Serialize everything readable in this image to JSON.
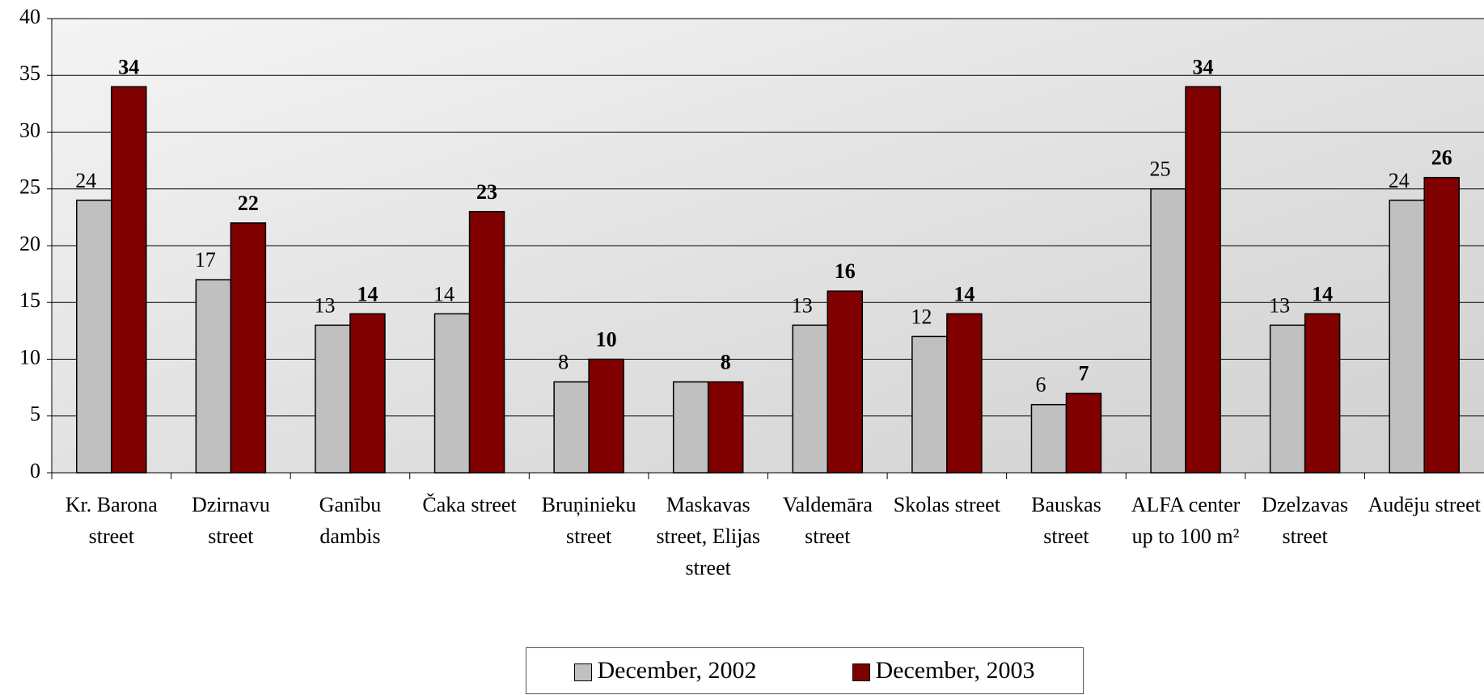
{
  "chart_data": {
    "type": "bar",
    "categories": [
      "Kr. Barona street",
      "Dzirnavu street",
      "Ganību dambis",
      "Čaka street",
      "Bruņinieku street",
      "Maskavas street, Elijas street",
      "Valdemāra street",
      "Skolas street",
      "Bauskas street",
      "ALFA center up to 100 m²",
      "Dzelzavas street",
      "Audēju street"
    ],
    "series": [
      {
        "name": "December, 2002",
        "color": "#c0c0c0",
        "values": [
          24,
          17,
          13,
          14,
          8,
          8,
          13,
          12,
          6,
          25,
          13,
          24
        ],
        "value_labels": [
          "24",
          "17",
          "13",
          "14",
          "8",
          null,
          "13",
          "12",
          "6",
          "25",
          "13",
          "24"
        ]
      },
      {
        "name": "December, 2003",
        "color": "#800000",
        "values": [
          34,
          22,
          14,
          23,
          10,
          8,
          16,
          14,
          7,
          34,
          14,
          26
        ]
      }
    ],
    "ylim": [
      0,
      40
    ],
    "yticks": [
      0,
      5,
      10,
      15,
      20,
      25,
      30,
      35,
      40
    ],
    "grid": true,
    "legend": "bottom"
  }
}
